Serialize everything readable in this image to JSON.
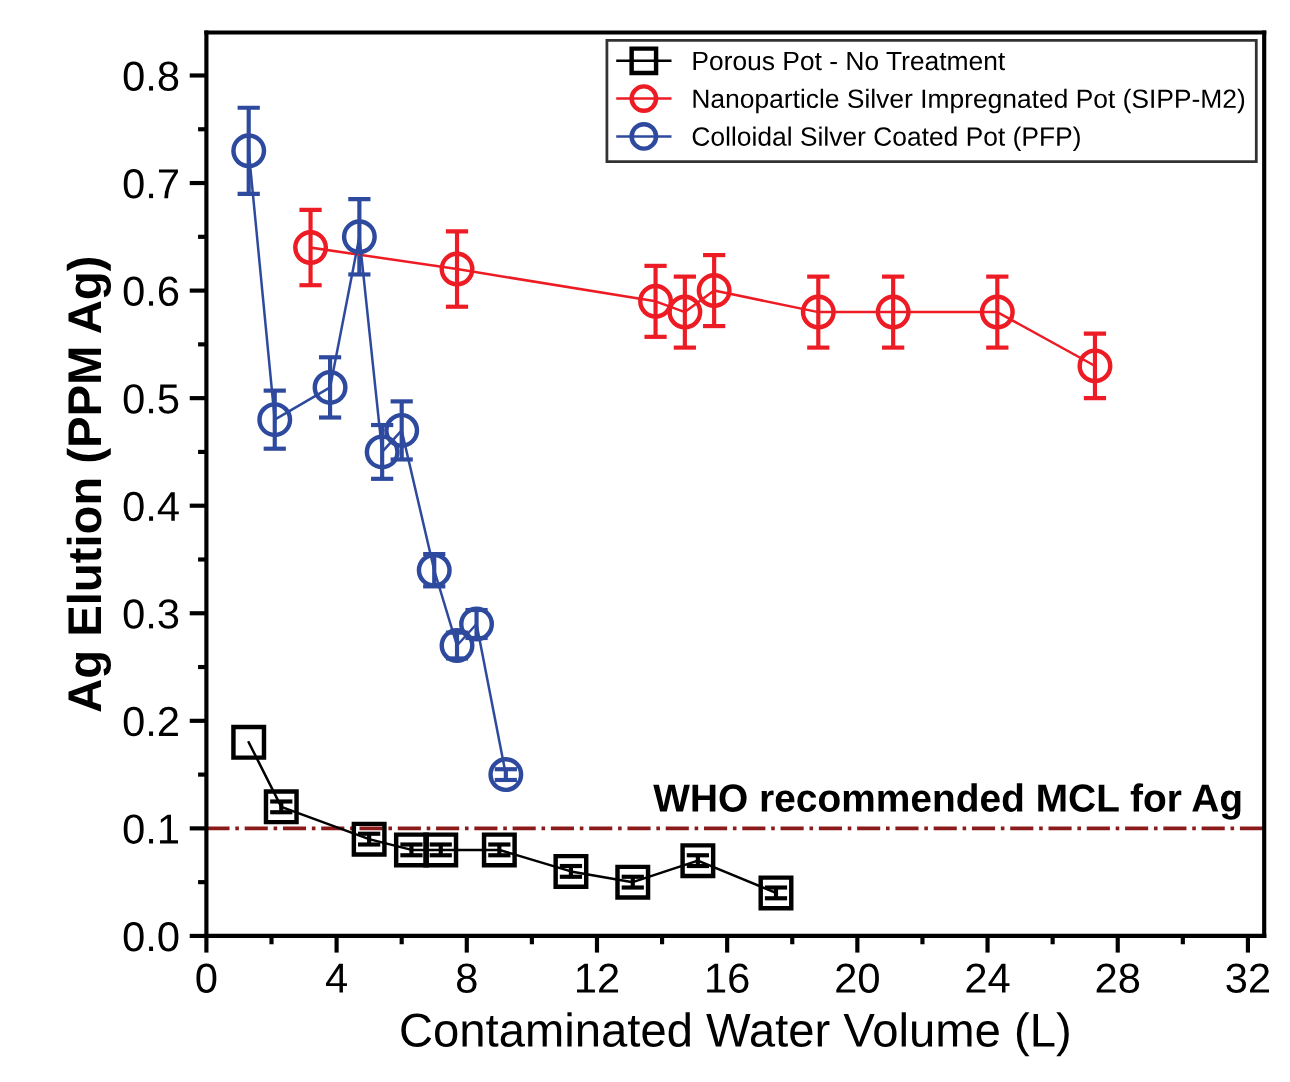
{
  "chart_data": {
    "type": "line",
    "xlabel": "Contaminated Water Volume (L)",
    "ylabel": "Ag Elution (PPM Ag)",
    "xlim": [
      0,
      32.5
    ],
    "ylim": [
      0,
      0.84
    ],
    "xticks": [
      0,
      4,
      8,
      12,
      16,
      20,
      24,
      28,
      32
    ],
    "yticks": [
      {
        "value": 0,
        "label": "0.0"
      },
      0.1,
      0.2,
      0.3,
      0.4,
      0.5,
      0.6,
      0.7,
      0.8
    ],
    "grid": false,
    "legend": "top right",
    "series": [
      {
        "name": "Porous Pot - No Treatment",
        "color": "#000000",
        "marker": "square",
        "x": [
          1.3,
          2.3,
          5.0,
          6.3,
          7.2,
          9.0,
          11.2,
          13.1,
          15.1,
          17.5
        ],
        "values": [
          0.18,
          0.12,
          0.09,
          0.08,
          0.08,
          0.08,
          0.06,
          0.05,
          0.07,
          0.04
        ],
        "errors": [
          null,
          0.005,
          0.005,
          0.005,
          0.005,
          0.005,
          0.005,
          0.005,
          0.005,
          0.005
        ]
      },
      {
        "name": "Nanoparticle Silver Impregnated Pot (SIPP-M2)",
        "color": "#ed1c24",
        "marker": "circle",
        "x": [
          3.2,
          7.7,
          13.8,
          14.7,
          15.6,
          18.8,
          21.1,
          24.3,
          27.3
        ],
        "values": [
          0.64,
          0.62,
          0.59,
          0.58,
          0.6,
          0.58,
          0.58,
          0.58,
          0.53
        ],
        "errors": [
          0.035,
          0.035,
          0.033,
          0.033,
          0.033,
          0.033,
          0.033,
          0.033,
          0.03
        ]
      },
      {
        "name": "Colloidal Silver Coated Pot (PFP)",
        "color": "#2e4a9e",
        "marker": "circle",
        "x": [
          1.3,
          2.1,
          3.8,
          4.7,
          5.4,
          6.0,
          7.0,
          7.7,
          8.3,
          9.2
        ],
        "values": [
          0.73,
          0.48,
          0.51,
          0.65,
          0.45,
          0.47,
          0.34,
          0.27,
          0.29,
          0.15
        ],
        "errors": [
          0.04,
          0.027,
          0.028,
          0.035,
          0.025,
          0.027,
          0.015,
          0.012,
          0.013,
          0.005
        ]
      }
    ],
    "ref_lines": [
      {
        "axis": "y",
        "value": 0.1,
        "label": "WHO recommended MCL for Ag",
        "color": "#8b1a1a",
        "line_style": "dashdot"
      }
    ]
  }
}
